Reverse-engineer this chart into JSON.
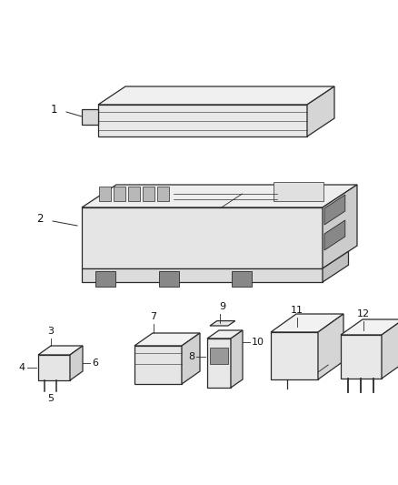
{
  "background_color": "#ffffff",
  "line_color": "#2a2a2a",
  "fig_width": 4.38,
  "fig_height": 5.33,
  "dpi": 100
}
